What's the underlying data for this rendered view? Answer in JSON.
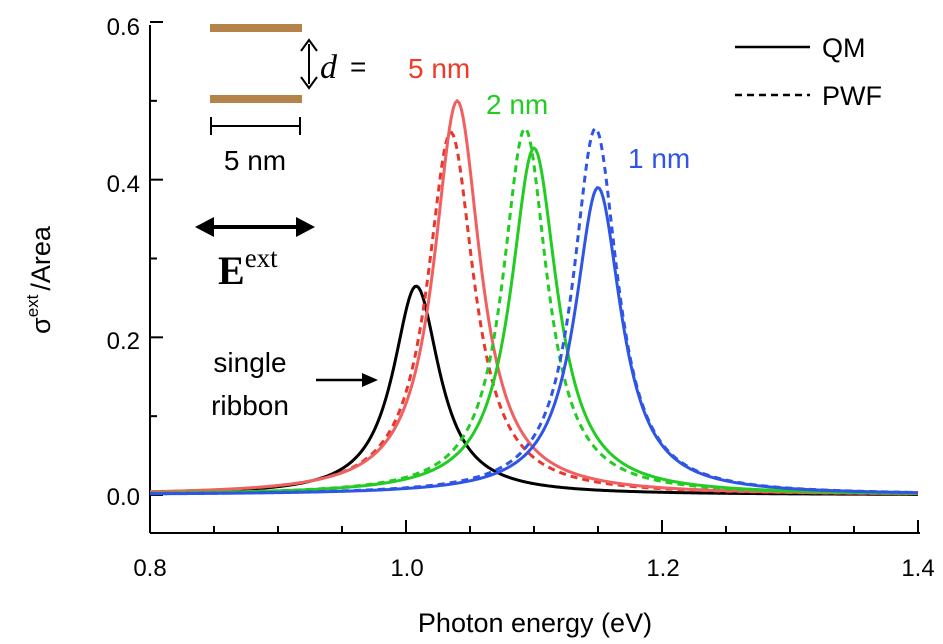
{
  "chart_data": {
    "type": "line",
    "xlabel": "Photon energy (eV)",
    "ylabel_symbol": "σ",
    "ylabel_sup": "ext",
    "ylabel_rest": "/Area",
    "xlim": [
      0.8,
      1.4
    ],
    "ylim": [
      0.0,
      0.6
    ],
    "x_ticks": [
      "0.8",
      "1.0",
      "1.2",
      "1.4"
    ],
    "y_ticks": [
      "0.0",
      "0.2",
      "0.4",
      "0.6"
    ],
    "grid": false,
    "legend": {
      "placement": "top-right",
      "entries": [
        {
          "label": "QM",
          "style": "solid"
        },
        {
          "label": "PWF",
          "style": "dashed"
        }
      ]
    },
    "series": [
      {
        "label": "single ribbon",
        "method": "QM",
        "color": "#000000",
        "peak_x": 1.008,
        "peak_y": 0.265,
        "width": 0.044
      },
      {
        "label": "single ribbon",
        "method": "PWF",
        "color": "#e8372d",
        "peak_x": 1.035,
        "peak_y": 0.46,
        "width": 0.044
      },
      {
        "label": "5 nm",
        "method": "QM",
        "color": "#f06060",
        "peak_x": 1.04,
        "peak_y": 0.5,
        "width": 0.044
      },
      {
        "label": "2 nm",
        "method": "QM",
        "color": "#22cc22",
        "peak_x": 1.1,
        "peak_y": 0.44,
        "width": 0.044
      },
      {
        "label": "2 nm",
        "method": "PWF",
        "color": "#22cc22",
        "peak_x": 1.093,
        "peak_y": 0.465,
        "width": 0.042
      },
      {
        "label": "1 nm",
        "method": "QM",
        "color": "#2e55e6",
        "peak_x": 1.15,
        "peak_y": 0.39,
        "width": 0.044
      },
      {
        "label": "1 nm",
        "method": "PWF",
        "color": "#2e55e6",
        "peak_x": 1.148,
        "peak_y": 0.465,
        "width": 0.042
      }
    ],
    "annotations": {
      "d_symbol": "d",
      "d_equals": "=",
      "label_5nm": "5 nm",
      "label_2nm": "2 nm",
      "label_1nm": "1 nm",
      "scale_bar": "5 nm",
      "field_E": "E",
      "field_sup": "ext",
      "single_line1": "single",
      "single_line2": "ribbon"
    },
    "colors": {
      "ribbon": "#b5834a",
      "red": "#ef3a2a",
      "green": "#22cc22",
      "blue": "#2e55e6"
    }
  }
}
